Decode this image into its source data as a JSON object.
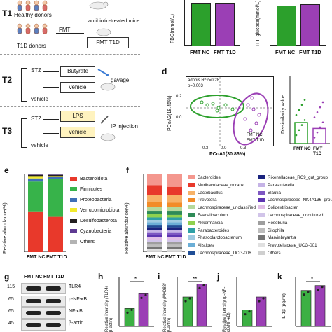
{
  "panel_a": {
    "t1_label": "T1",
    "healthy_donors": "Healthy donors",
    "t1d_donors": "T1D donors",
    "fmt_arrow": "FMT",
    "mice_label": "antibiotic-treated mice",
    "fmt_t1d": "FMT T1D"
  },
  "panel_t2": {
    "label": "T2",
    "stz": "STZ",
    "vehicle_bottom": "vehicle",
    "butyrate_box": "Butyrate",
    "vehicle_box": "vehicle",
    "route": "gavage"
  },
  "panel_t3": {
    "label": "T3",
    "stz": "STZ",
    "vehicle_bottom": "vehicle",
    "lps_box": "LPS",
    "vehicle_box": "vehicle",
    "route": "IP injection"
  },
  "panel_top_right": {
    "ylabel_left": "FBG(mmol/L)",
    "ylabel_right": "ITT, glucose(mmol/L)",
    "x1": "FMT NC",
    "x2": "FMT T1D"
  },
  "panel_d": {
    "letter": "d",
    "stat_line1": "adnois R^2=0.28",
    "stat_line2": "p=0.003",
    "xlabel": "PCoA1(30.86%)",
    "ylabel": "PCoA2(18.45%)",
    "legend1": "FMT NC",
    "legend2": "FMT T1D",
    "bar_ylabel": "Dissimilarity value",
    "bar_x1": "FMT NC",
    "bar_x2": "FMT T1D",
    "xticks": [
      "-0.3",
      "0.0",
      "0.3"
    ],
    "yticks": [
      "0.2",
      "0.0",
      "-0.2"
    ],
    "bar_yticks": [
      "0.8",
      "0.6",
      "0.4",
      "0.2",
      "0.0"
    ]
  },
  "panel_e": {
    "letter": "e",
    "ylabel": "Relative abundance(%)",
    "yticks": [
      "100",
      "80",
      "60",
      "40",
      "20",
      "0"
    ],
    "x1": "FMT NC",
    "x2": "FMT T1D",
    "legend": [
      {
        "name": "Bacteroidota",
        "color": "#e8392b"
      },
      {
        "name": "Firmicutes",
        "color": "#37b34a"
      },
      {
        "name": "Proteobacteria",
        "color": "#3f6fb6"
      },
      {
        "name": "Verrucomicrobiota",
        "color": "#f2ea2e"
      },
      {
        "name": "Desulfobacterota",
        "color": "#231f20"
      },
      {
        "name": "Cyanobacteria",
        "color": "#5e3a92"
      },
      {
        "name": "Others",
        "color": "#b3b3b3"
      }
    ]
  },
  "panel_f": {
    "letter": "f",
    "ylabel": "Relative abundance(%)",
    "yticks": [
      "100",
      "80",
      "60",
      "40",
      "20",
      "0"
    ],
    "x1": "FMT NC",
    "x2": "FMT T1D",
    "legend_left": [
      {
        "name": "Bacteroides",
        "color": "#f4978e"
      },
      {
        "name": "Muribaculaceae_norank",
        "color": "#e8392b"
      },
      {
        "name": "Lactobacillus",
        "color": "#f7b267"
      },
      {
        "name": "Prevotella",
        "color": "#f28c28"
      },
      {
        "name": "Lachnospiraceae_unclassified",
        "color": "#b5d99c"
      },
      {
        "name": "Faecalibaculum",
        "color": "#2e8b57"
      },
      {
        "name": "Akkermansia",
        "color": "#8fd14f"
      },
      {
        "name": "Parabacteroides",
        "color": "#2ea0a6"
      },
      {
        "name": "Phascolarctobacterium",
        "color": "#9ecae1"
      },
      {
        "name": "Alistipes",
        "color": "#6baed6"
      },
      {
        "name": "Lachnospiraceae_UCG-006",
        "color": "#1f4e96"
      }
    ],
    "legend_right": [
      {
        "name": "Rikenellaceae_RC9_gut_group",
        "color": "#1a237e"
      },
      {
        "name": "Parasutterella",
        "color": "#c5b3e6"
      },
      {
        "name": "Blautia",
        "color": "#7e57c2"
      },
      {
        "name": "Lachnospiraceae_NK4A136_group",
        "color": "#5e35b1"
      },
      {
        "name": "Colidextribacter",
        "color": "#e1bee7"
      },
      {
        "name": "Lachnospiraceae_uncultured",
        "color": "#d1c4e9"
      },
      {
        "name": "Roseburia",
        "color": "#9e9e9e"
      },
      {
        "name": "Bilophila",
        "color": "#bdbdbd"
      },
      {
        "name": "Marvinbryantia",
        "color": "#757575"
      },
      {
        "name": "Prevotellaceae_UCG-001",
        "color": "#e0e0e0"
      },
      {
        "name": "Others",
        "color": "#cfcfcf"
      }
    ]
  },
  "panel_g": {
    "letter": "g",
    "col1": "FMT NC",
    "col2": "FMT T1D",
    "mw1": "115",
    "mw2": "65",
    "mw3": "65",
    "mw4": "45",
    "band1": "TLR4",
    "band2": "p-NF-κB",
    "band3": "NF-κB",
    "band4": "β-actin"
  },
  "panel_h": {
    "letter": "h",
    "ylabel": "Relative intensity (TLR4/β-actin)",
    "sig": "*",
    "yticks": [
      "3",
      "2",
      "1"
    ]
  },
  "panel_i": {
    "letter": "i",
    "ylabel": "Relative intensity (MyD88/β-actin)",
    "sig": "**",
    "yticks": [
      "3",
      "2",
      "1"
    ]
  },
  "panel_j": {
    "letter": "j",
    "ylabel": "Relative intensity (p-NF-κB/NF-κB)",
    "yticks": [
      "3",
      "2",
      "1"
    ]
  },
  "panel_k": {
    "letter": "k",
    "ylabel": "IL-1β (pg/ml)",
    "sig": "*",
    "yticks": [
      "20",
      "15",
      "10"
    ]
  },
  "colors": {
    "green": "#2ca02c",
    "purple": "#9b3fb5",
    "nc_green": "#3cb043",
    "t1d_purple": "#8e44ad"
  },
  "chart_data": [
    {
      "type": "bar",
      "title": "",
      "categories": [
        "FMT NC",
        "FMT T1D"
      ],
      "series": [
        {
          "name": "Bacteroidota",
          "values": [
            52,
            45
          ]
        },
        {
          "name": "Firmicutes",
          "values": [
            38,
            48
          ]
        },
        {
          "name": "Proteobacteria",
          "values": [
            4,
            3
          ]
        },
        {
          "name": "Verrucomicrobiota",
          "values": [
            3,
            1
          ]
        },
        {
          "name": "Desulfobacterota",
          "values": [
            1.5,
            1.5
          ]
        },
        {
          "name": "Cyanobacteria",
          "values": [
            0.5,
            0.5
          ]
        },
        {
          "name": "Others",
          "values": [
            1,
            1
          ]
        }
      ],
      "ylabel": "Relative abundance(%)",
      "ylim": [
        0,
        100
      ]
    },
    {
      "type": "bar",
      "categories": [
        "FMT NC",
        "FMT T1D"
      ],
      "series": [
        {
          "values": [
            0.25,
            0.18
          ]
        }
      ],
      "ylabel": "Dissimilarity value",
      "ylim": [
        0,
        0.8
      ]
    },
    {
      "type": "bar",
      "categories": [
        "FMT NC",
        "FMT T1D"
      ],
      "series": [
        {
          "values": [
            1.1,
            2.0
          ]
        }
      ],
      "ylabel": "Relative intensity (TLR4/β-actin)"
    },
    {
      "type": "bar",
      "categories": [
        "FMT NC",
        "FMT T1D"
      ],
      "series": [
        {
          "values": [
            1.8,
            2.6
          ]
        }
      ],
      "ylabel": "Relative intensity (MyD88/β-actin)"
    },
    {
      "type": "bar",
      "categories": [
        "FMT NC",
        "FMT T1D"
      ],
      "series": [
        {
          "values": [
            1.0,
            1.8
          ]
        }
      ],
      "ylabel": "Relative intensity (p-NF-κB/NF-κB)"
    },
    {
      "type": "bar",
      "categories": [
        "FMT NC",
        "FMT T1D"
      ],
      "series": [
        {
          "values": [
            11,
            12.5
          ]
        }
      ],
      "ylabel": "IL-1β (pg/ml)"
    }
  ]
}
